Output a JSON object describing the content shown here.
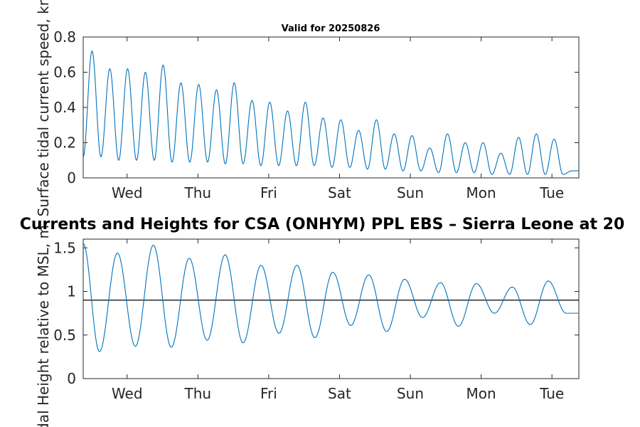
{
  "chart_data": [
    {
      "type": "line",
      "title": "Valid for 20250826",
      "ylabel": "Surface tidal current speed, kn",
      "xlabel": "",
      "x_tick_labels": [
        "Wed",
        "Thu",
        "Fri",
        "Sat",
        "Sun",
        "Mon",
        "Tue"
      ],
      "y_ticks": [
        "0",
        "0.2",
        "0.4",
        "0.6",
        "0.8"
      ],
      "ylim": [
        0,
        0.8
      ],
      "xlim_days": [
        0,
        7
      ],
      "grid": false,
      "line_color": "#0072BD",
      "series": [
        {
          "peaks": [
            0.72,
            0.62,
            0.62,
            0.6,
            0.64,
            0.54,
            0.53,
            0.5,
            0.54,
            0.44,
            0.43,
            0.38,
            0.43,
            0.34,
            0.33,
            0.27,
            0.33,
            0.25,
            0.24,
            0.17,
            0.25,
            0.2,
            0.2,
            0.14,
            0.23,
            0.25,
            0.22
          ],
          "troughs": [
            0.12,
            0.1,
            0.1,
            0.1,
            0.09,
            0.09,
            0.09,
            0.08,
            0.08,
            0.07,
            0.07,
            0.07,
            0.07,
            0.06,
            0.06,
            0.05,
            0.05,
            0.04,
            0.04,
            0.03,
            0.03,
            0.03,
            0.02,
            0.02,
            0.02,
            0.02,
            0.02,
            0.04
          ],
          "start_value": 0.12,
          "end_value": 0.04
        }
      ]
    },
    {
      "type": "line",
      "title": "Currents and Heights for CSA (ONHYM) PPL EBS  – Sierra Leone at 20",
      "ylabel": "Tidal Height relative to MSL, m",
      "xlabel": "",
      "x_tick_labels": [
        "Wed",
        "Thu",
        "Fri",
        "Sat",
        "Sun",
        "Mon",
        "Tue"
      ],
      "y_ticks": [
        "0",
        "0.5",
        "1",
        "1.5"
      ],
      "ylim": [
        0,
        1.6
      ],
      "xlim_days": [
        0,
        7
      ],
      "grid": false,
      "line_color": "#0072BD",
      "reference_line": {
        "value": 0.9,
        "color": "#000000"
      },
      "series": [
        {
          "peaks": [
            1.44,
            1.53,
            1.38,
            1.42,
            1.3,
            1.3,
            1.22,
            1.19,
            1.14,
            1.1,
            1.09,
            1.05,
            1.12
          ],
          "troughs": [
            0.31,
            0.37,
            0.36,
            0.44,
            0.41,
            0.52,
            0.47,
            0.61,
            0.54,
            0.7,
            0.6,
            0.75,
            0.62,
            0.75
          ],
          "start_value": 1.55,
          "end_value": 0.75
        }
      ]
    }
  ]
}
